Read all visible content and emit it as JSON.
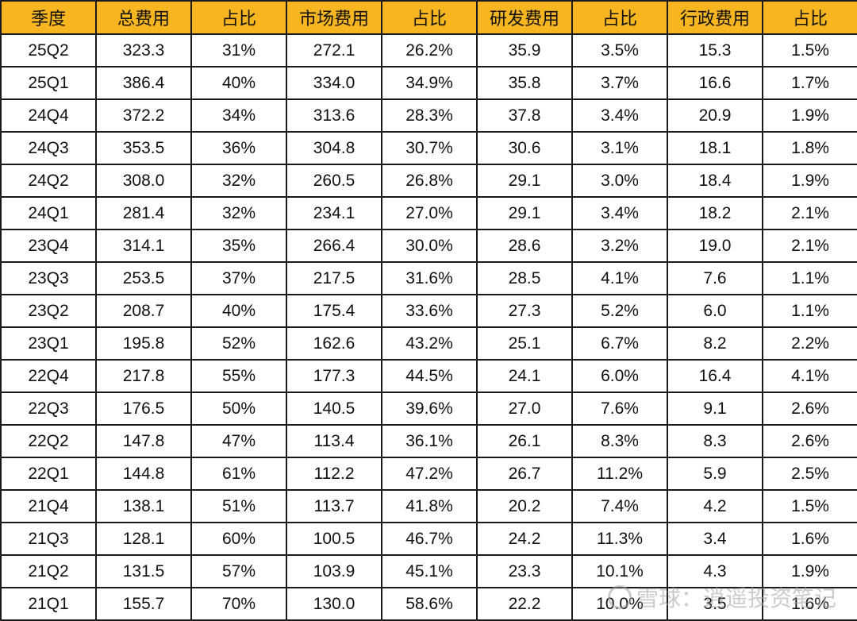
{
  "table": {
    "headers": [
      "季度",
      "总费用",
      "占比",
      "市场费用",
      "占比",
      "研发费用",
      "占比",
      "行政费用",
      "占比"
    ],
    "rows": [
      [
        "25Q2",
        "323.3",
        "31%",
        "272.1",
        "26.2%",
        "35.9",
        "3.5%",
        "15.3",
        "1.5%"
      ],
      [
        "25Q1",
        "386.4",
        "40%",
        "334.0",
        "34.9%",
        "35.8",
        "3.7%",
        "16.6",
        "1.7%"
      ],
      [
        "24Q4",
        "372.2",
        "34%",
        "313.6",
        "28.3%",
        "37.8",
        "3.4%",
        "20.9",
        "1.9%"
      ],
      [
        "24Q3",
        "353.5",
        "36%",
        "304.8",
        "30.7%",
        "30.6",
        "3.1%",
        "18.1",
        "1.8%"
      ],
      [
        "24Q2",
        "308.0",
        "32%",
        "260.5",
        "26.8%",
        "29.1",
        "3.0%",
        "18.4",
        "1.9%"
      ],
      [
        "24Q1",
        "281.4",
        "32%",
        "234.1",
        "27.0%",
        "29.1",
        "3.4%",
        "18.2",
        "2.1%"
      ],
      [
        "23Q4",
        "314.1",
        "35%",
        "266.4",
        "30.0%",
        "28.6",
        "3.2%",
        "19.0",
        "2.1%"
      ],
      [
        "23Q3",
        "253.5",
        "37%",
        "217.5",
        "31.6%",
        "28.5",
        "4.1%",
        "7.6",
        "1.1%"
      ],
      [
        "23Q2",
        "208.7",
        "40%",
        "175.4",
        "33.6%",
        "27.3",
        "5.2%",
        "6.0",
        "1.1%"
      ],
      [
        "23Q1",
        "195.8",
        "52%",
        "162.6",
        "43.2%",
        "25.1",
        "6.7%",
        "8.2",
        "2.2%"
      ],
      [
        "22Q4",
        "217.8",
        "55%",
        "177.3",
        "44.5%",
        "24.1",
        "6.0%",
        "16.4",
        "4.1%"
      ],
      [
        "22Q3",
        "176.5",
        "50%",
        "140.5",
        "39.6%",
        "27.0",
        "7.6%",
        "9.1",
        "2.6%"
      ],
      [
        "22Q2",
        "147.8",
        "47%",
        "113.4",
        "36.1%",
        "26.1",
        "8.3%",
        "8.3",
        "2.6%"
      ],
      [
        "22Q1",
        "144.8",
        "61%",
        "112.2",
        "47.2%",
        "26.7",
        "11.2%",
        "5.9",
        "2.5%"
      ],
      [
        "21Q4",
        "138.1",
        "51%",
        "113.7",
        "41.8%",
        "20.2",
        "7.4%",
        "4.2",
        "1.5%"
      ],
      [
        "21Q3",
        "128.1",
        "60%",
        "100.5",
        "46.7%",
        "24.2",
        "11.3%",
        "3.4",
        "1.6%"
      ],
      [
        "21Q2",
        "131.5",
        "57%",
        "103.9",
        "45.1%",
        "23.3",
        "10.1%",
        "4.3",
        "1.9%"
      ],
      [
        "21Q1",
        "155.7",
        "70%",
        "130.0",
        "58.6%",
        "22.2",
        "10.0%",
        "3.5",
        "1.6%"
      ]
    ]
  },
  "watermark": {
    "text": "雪球：逍遥投资笔记",
    "icon": "snowball-logo-icon"
  },
  "colors": {
    "header_bg": "#f7b51f",
    "border": "#1a1a1a"
  }
}
